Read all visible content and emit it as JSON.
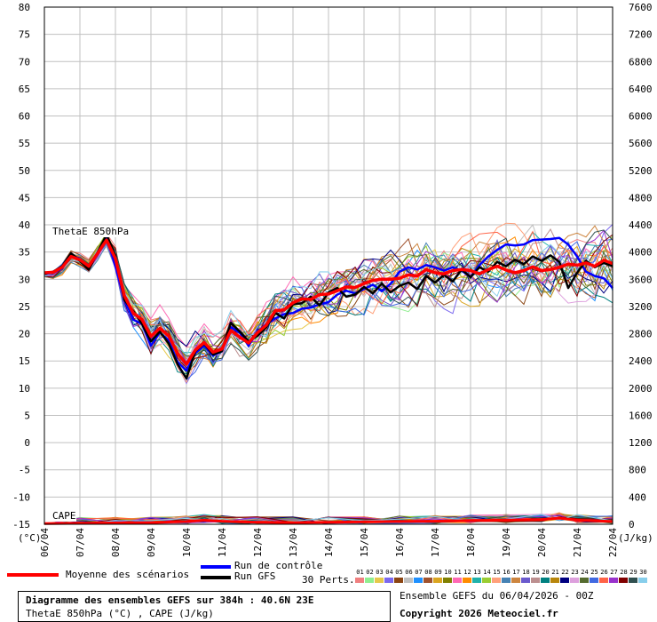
{
  "chart_data": {
    "type": "line",
    "title_box": {
      "line1": "Diagramme des ensembles GEFS sur 384h : 40.6N 23E",
      "line2": "ThetaE 850hPa (°C) , CAPE (J/kg)"
    },
    "ensemble_label": "Ensemble GEFS du 06/04/2026 - 00Z",
    "copyright": "Copyright 2026 Meteociel.fr",
    "left_axis": {
      "unit": "(°C)",
      "range": [
        -15,
        80
      ],
      "ticks": [
        "80",
        "75",
        "70",
        "65",
        "60",
        "55",
        "50",
        "45",
        "40",
        "35",
        "30",
        "25",
        "20",
        "15",
        "10",
        "5",
        "0",
        "-5",
        "-10",
        "-15"
      ]
    },
    "right_axis": {
      "unit": "(J/kg)",
      "range": [
        0,
        7600
      ],
      "ticks": [
        "7600",
        "7200",
        "6800",
        "6400",
        "6000",
        "5600",
        "5200",
        "4800",
        "4400",
        "4000",
        "3600",
        "3200",
        "2800",
        "2400",
        "2000",
        "1600",
        "1200",
        "800",
        "400",
        "0"
      ]
    },
    "x_ticks": [
      "06/04",
      "07/04",
      "08/04",
      "09/04",
      "10/04",
      "11/04",
      "12/04",
      "13/04",
      "14/04",
      "15/04",
      "16/04",
      "17/04",
      "18/04",
      "19/04",
      "20/04",
      "21/04",
      "22/04"
    ],
    "x_range_hours": [
      0,
      384
    ],
    "series_labels": {
      "thetae": "ThetaE 850hPa",
      "cape": "CAPE"
    },
    "legend": {
      "mean": "Moyenne des scénarios",
      "control": "Run de contrôle",
      "gfs": "Run GFS",
      "perts": "30 Perts."
    },
    "colors": {
      "mean": "#ff0000",
      "control": "#0000ff",
      "gfs": "#000000",
      "grid": "#c0c0c0"
    },
    "pert_numbers": [
      "01",
      "02",
      "03",
      "04",
      "05",
      "06",
      "07",
      "08",
      "09",
      "10",
      "11",
      "12",
      "13",
      "14",
      "15",
      "16",
      "17",
      "18",
      "19",
      "20",
      "21",
      "22",
      "23",
      "24",
      "25",
      "26",
      "27",
      "28",
      "29",
      "30"
    ],
    "pert_colors": [
      "#f08080",
      "#90ee90",
      "#e6c84a",
      "#7b68ee",
      "#8b4513",
      "#c0c0c0",
      "#1e90ff",
      "#a0522d",
      "#daa520",
      "#808000",
      "#ff69b4",
      "#ff8c00",
      "#20b2aa",
      "#9acd32",
      "#ffa07a",
      "#4682b4",
      "#cd853f",
      "#6a5acd",
      "#bc8f8f",
      "#008080",
      "#b8860b",
      "#000080",
      "#dda0dd",
      "#556b2f",
      "#4169e1",
      "#ff6347",
      "#9932cc",
      "#800000",
      "#2f4f4f",
      "#87ceeb"
    ],
    "mean_thetae": [
      [
        0,
        31.2
      ],
      [
        6,
        31.3
      ],
      [
        12,
        32.2
      ],
      [
        18,
        34.2
      ],
      [
        24,
        33.6
      ],
      [
        30,
        32.4
      ],
      [
        36,
        34.8
      ],
      [
        42,
        37.2
      ],
      [
        48,
        33.8
      ],
      [
        54,
        27.0
      ],
      [
        60,
        23.8
      ],
      [
        66,
        22.6
      ],
      [
        72,
        19.5
      ],
      [
        78,
        21.0
      ],
      [
        84,
        19.6
      ],
      [
        90,
        16.4
      ],
      [
        96,
        14.4
      ],
      [
        102,
        17.0
      ],
      [
        108,
        18.4
      ],
      [
        114,
        16.6
      ],
      [
        120,
        17.2
      ],
      [
        126,
        20.6
      ],
      [
        132,
        19.4
      ],
      [
        138,
        18.3
      ],
      [
        144,
        20.2
      ],
      [
        150,
        21.6
      ],
      [
        156,
        24.2
      ],
      [
        162,
        24.4
      ],
      [
        168,
        25.7
      ],
      [
        174,
        26.4
      ],
      [
        180,
        26.3
      ],
      [
        186,
        27.2
      ],
      [
        192,
        27.3
      ],
      [
        198,
        27.9
      ],
      [
        204,
        28.6
      ],
      [
        210,
        28.5
      ],
      [
        216,
        29.2
      ],
      [
        222,
        29.8
      ],
      [
        228,
        30.0
      ],
      [
        234,
        30.0
      ],
      [
        240,
        30.2
      ],
      [
        246,
        30.8
      ],
      [
        252,
        30.6
      ],
      [
        258,
        31.8
      ],
      [
        264,
        31.2
      ],
      [
        270,
        31.0
      ],
      [
        276,
        31.6
      ],
      [
        282,
        31.8
      ],
      [
        288,
        31.6
      ],
      [
        294,
        31.0
      ],
      [
        300,
        31.8
      ],
      [
        306,
        32.4
      ],
      [
        312,
        31.7
      ],
      [
        318,
        31.2
      ],
      [
        324,
        31.6
      ],
      [
        330,
        32.3
      ],
      [
        336,
        31.6
      ],
      [
        342,
        31.8
      ],
      [
        348,
        32.2
      ],
      [
        354,
        32.8
      ],
      [
        360,
        32.6
      ],
      [
        366,
        33.0
      ],
      [
        372,
        32.4
      ],
      [
        378,
        33.5
      ],
      [
        384,
        32.9
      ]
    ],
    "control_thetae": [
      [
        0,
        31.0
      ],
      [
        6,
        31.2
      ],
      [
        12,
        32.0
      ],
      [
        18,
        34.5
      ],
      [
        24,
        33.7
      ],
      [
        30,
        32.0
      ],
      [
        36,
        34.8
      ],
      [
        42,
        37.8
      ],
      [
        48,
        32.4
      ],
      [
        54,
        26.4
      ],
      [
        60,
        22.6
      ],
      [
        66,
        21.8
      ],
      [
        72,
        17.8
      ],
      [
        78,
        20.2
      ],
      [
        84,
        18.8
      ],
      [
        90,
        14.8
      ],
      [
        96,
        13.2
      ],
      [
        102,
        16.4
      ],
      [
        108,
        17.8
      ],
      [
        114,
        16.0
      ],
      [
        120,
        16.8
      ],
      [
        126,
        21.2
      ],
      [
        132,
        20.2
      ],
      [
        138,
        17.8
      ],
      [
        144,
        20.4
      ],
      [
        150,
        21.8
      ],
      [
        156,
        22.8
      ],
      [
        162,
        23.6
      ],
      [
        168,
        23.8
      ],
      [
        174,
        24.6
      ],
      [
        180,
        24.8
      ],
      [
        186,
        25.4
      ],
      [
        192,
        25.8
      ],
      [
        198,
        27.2
      ],
      [
        204,
        27.9
      ],
      [
        210,
        27.4
      ],
      [
        216,
        28.2
      ],
      [
        222,
        29.0
      ],
      [
        228,
        27.8
      ],
      [
        234,
        29.2
      ],
      [
        240,
        31.4
      ],
      [
        246,
        32.2
      ],
      [
        252,
        31.8
      ],
      [
        258,
        32.6
      ],
      [
        264,
        32.2
      ],
      [
        270,
        31.6
      ],
      [
        276,
        32.2
      ],
      [
        282,
        31.6
      ],
      [
        288,
        30.4
      ],
      [
        294,
        32.6
      ],
      [
        300,
        34.2
      ],
      [
        306,
        35.4
      ],
      [
        312,
        36.4
      ],
      [
        318,
        36.2
      ],
      [
        324,
        36.4
      ],
      [
        330,
        37.2
      ],
      [
        336,
        37.3
      ],
      [
        342,
        37.4
      ],
      [
        348,
        37.6
      ],
      [
        354,
        36.4
      ],
      [
        360,
        34.2
      ],
      [
        366,
        31.4
      ],
      [
        372,
        30.6
      ],
      [
        378,
        30.2
      ],
      [
        384,
        28.4
      ]
    ],
    "gfs_thetae": [
      [
        0,
        31.0
      ],
      [
        6,
        31.4
      ],
      [
        12,
        32.4
      ],
      [
        18,
        34.8
      ],
      [
        24,
        33.4
      ],
      [
        30,
        31.8
      ],
      [
        36,
        35.0
      ],
      [
        42,
        38.2
      ],
      [
        48,
        34.4
      ],
      [
        54,
        26.2
      ],
      [
        60,
        24.2
      ],
      [
        66,
        21.8
      ],
      [
        72,
        18.6
      ],
      [
        78,
        20.4
      ],
      [
        84,
        18.2
      ],
      [
        90,
        14.4
      ],
      [
        96,
        11.8
      ],
      [
        102,
        16.8
      ],
      [
        108,
        18.2
      ],
      [
        114,
        16.2
      ],
      [
        120,
        16.8
      ],
      [
        126,
        22.0
      ],
      [
        132,
        20.4
      ],
      [
        138,
        18.6
      ],
      [
        144,
        19.6
      ],
      [
        150,
        21.2
      ],
      [
        156,
        23.8
      ],
      [
        162,
        22.8
      ],
      [
        168,
        25.4
      ],
      [
        174,
        25.6
      ],
      [
        180,
        26.8
      ],
      [
        186,
        25.2
      ],
      [
        192,
        27.6
      ],
      [
        198,
        28.4
      ],
      [
        204,
        26.8
      ],
      [
        210,
        27.2
      ],
      [
        216,
        28.6
      ],
      [
        222,
        27.4
      ],
      [
        228,
        29.2
      ],
      [
        234,
        27.6
      ],
      [
        240,
        28.8
      ],
      [
        246,
        29.4
      ],
      [
        252,
        28.2
      ],
      [
        258,
        30.6
      ],
      [
        264,
        29.4
      ],
      [
        270,
        30.8
      ],
      [
        276,
        29.6
      ],
      [
        282,
        31.8
      ],
      [
        288,
        30.4
      ],
      [
        294,
        32.2
      ],
      [
        300,
        31.4
      ],
      [
        306,
        33.2
      ],
      [
        312,
        32.4
      ],
      [
        318,
        33.6
      ],
      [
        324,
        32.8
      ],
      [
        330,
        34.2
      ],
      [
        336,
        33.4
      ],
      [
        342,
        34.4
      ],
      [
        348,
        33.2
      ],
      [
        354,
        28.4
      ],
      [
        360,
        31.2
      ],
      [
        366,
        33.4
      ],
      [
        372,
        32.2
      ],
      [
        378,
        33.0
      ],
      [
        384,
        32.4
      ]
    ],
    "mean_cape": [
      [
        0,
        10
      ],
      [
        24,
        15
      ],
      [
        48,
        20
      ],
      [
        72,
        25
      ],
      [
        96,
        40
      ],
      [
        108,
        60
      ],
      [
        120,
        45
      ],
      [
        144,
        30
      ],
      [
        168,
        25
      ],
      [
        192,
        30
      ],
      [
        216,
        35
      ],
      [
        240,
        40
      ],
      [
        264,
        45
      ],
      [
        288,
        55
      ],
      [
        312,
        60
      ],
      [
        336,
        70
      ],
      [
        348,
        90
      ],
      [
        360,
        60
      ],
      [
        384,
        40
      ]
    ]
  }
}
